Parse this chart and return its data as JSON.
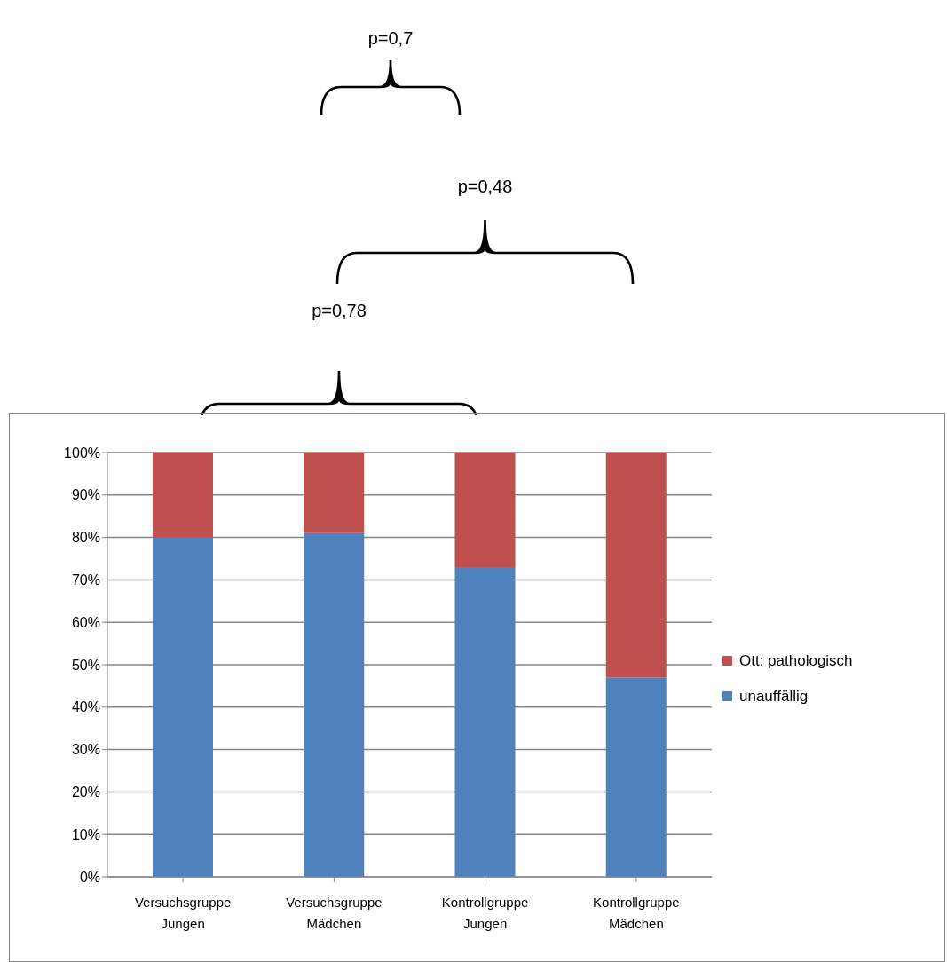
{
  "chart_data": {
    "type": "bar",
    "stacked": true,
    "categories": [
      "Versuchsgruppe Jungen",
      "Versuchsgruppe Mädchen",
      "Kontrollgruppe Jungen",
      "Kontrollgruppe Mädchen"
    ],
    "series": [
      {
        "name": "unauffällig",
        "color": "#4f81bd",
        "values": [
          80,
          81,
          73,
          47
        ]
      },
      {
        "name": "Ott: pathologisch",
        "color": "#c0504d",
        "values": [
          20,
          19,
          27,
          53
        ]
      }
    ],
    "ylim": [
      0,
      100
    ],
    "yticks": [
      {
        "value": 0,
        "label": "0%"
      },
      {
        "value": 10,
        "label": "10%"
      },
      {
        "value": 20,
        "label": "20%"
      },
      {
        "value": 30,
        "label": "30%"
      },
      {
        "value": 40,
        "label": "40%"
      },
      {
        "value": 50,
        "label": "50%"
      },
      {
        "value": 60,
        "label": "60%"
      },
      {
        "value": 70,
        "label": "70%"
      },
      {
        "value": 80,
        "label": "80%"
      },
      {
        "value": 90,
        "label": "90%"
      },
      {
        "value": 100,
        "label": "100%"
      }
    ],
    "grid": "y",
    "legend": "right",
    "annotations": [
      "p=0,7",
      "p=0,48",
      "p=0,78"
    ]
  }
}
